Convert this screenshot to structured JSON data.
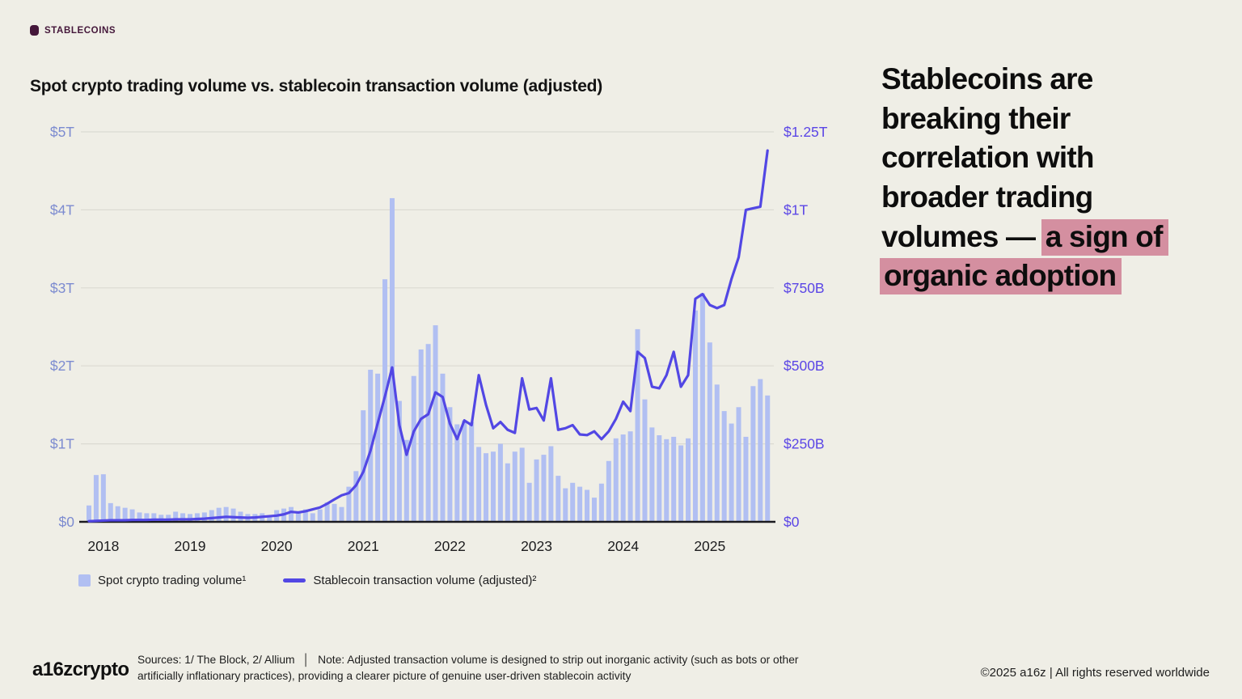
{
  "tag": {
    "label": "STABLECOINS",
    "color": "#44173a"
  },
  "chart_title": "Spot crypto trading volume vs. stablecoin transaction volume (adjusted)",
  "headline": {
    "plain": "Stablecoins are breaking their correlation with broader trading volumes — ",
    "highlighted": "a sign of organic adoption",
    "highlight_color": "#d48fa0"
  },
  "legend": [
    {
      "label": "Spot crypto trading volume¹",
      "swatch": "bar-swatch",
      "color": "#b1bff2"
    },
    {
      "label": "Stablecoin transaction volume (adjusted)²",
      "swatch": "line-swatch",
      "color": "#5247e4"
    }
  ],
  "footer": {
    "logo": "a16zcrypto",
    "sources": "Sources: 1/ The Block, 2/ Allium",
    "separator": "│",
    "note": "Note: Adjusted transaction volume is designed to strip out inorganic activity (such as bots or other artificially inflationary practices), providing a clearer picture of genuine user-driven stablecoin activity",
    "copyright": "©2025 a16z | All rights reserved worldwide"
  },
  "chart_data": {
    "type": "combo-bar-line",
    "title": "Spot crypto trading volume vs. stablecoin transaction volume (adjusted)",
    "x_axis": {
      "start_month": "2017-11",
      "frequency": "monthly",
      "end_month": "2025-09",
      "year_labels": [
        "2018",
        "2019",
        "2020",
        "2021",
        "2022",
        "2023",
        "2024",
        "2025"
      ]
    },
    "left_axis": {
      "title": "Spot crypto trading volume",
      "unit": "USD trillions",
      "range": [
        0,
        5
      ],
      "labels": [
        "$5T",
        "$4T",
        "$3T",
        "$2T",
        "$1T",
        "$0"
      ]
    },
    "right_axis": {
      "title": "Stablecoin transaction volume (adjusted)",
      "unit": "USD billions",
      "range": [
        0,
        1250
      ],
      "labels": [
        "$1.25T",
        "$1T",
        "$750B",
        "$500B",
        "$250B",
        "$0"
      ]
    },
    "grid": "horizontal",
    "legend_position": "bottom-left",
    "series": [
      {
        "name": "Spot crypto trading volume",
        "type": "bar",
        "axis": "left",
        "unit": "$T",
        "color": "#b1bff2",
        "values": [
          0.21,
          0.6,
          0.61,
          0.24,
          0.2,
          0.18,
          0.16,
          0.12,
          0.11,
          0.11,
          0.09,
          0.09,
          0.13,
          0.11,
          0.1,
          0.11,
          0.12,
          0.15,
          0.18,
          0.19,
          0.17,
          0.13,
          0.1,
          0.1,
          0.11,
          0.08,
          0.15,
          0.17,
          0.19,
          0.13,
          0.16,
          0.11,
          0.16,
          0.25,
          0.23,
          0.19,
          0.45,
          0.65,
          1.43,
          1.95,
          1.9,
          3.11,
          4.15,
          1.55,
          1.05,
          1.87,
          2.21,
          2.28,
          2.52,
          1.9,
          1.47,
          1.25,
          1.3,
          1.28,
          0.96,
          0.88,
          0.9,
          1.0,
          0.75,
          0.9,
          0.95,
          0.5,
          0.8,
          0.86,
          0.97,
          0.59,
          0.43,
          0.5,
          0.45,
          0.41,
          0.31,
          0.49,
          0.78,
          1.07,
          1.12,
          1.16,
          2.47,
          1.57,
          1.21,
          1.11,
          1.06,
          1.09,
          0.98,
          1.07,
          2.71,
          2.93,
          2.3,
          1.76,
          1.42,
          1.26,
          1.47,
          1.09,
          1.74,
          1.83,
          1.62
        ]
      },
      {
        "name": "Stablecoin transaction volume (adjusted)",
        "type": "line",
        "axis": "right",
        "unit": "$B",
        "color": "#5247e4",
        "values": [
          2,
          3,
          4,
          5,
          5,
          5,
          6,
          6,
          6,
          7,
          7,
          7,
          8,
          8,
          8,
          9,
          10,
          12,
          14,
          16,
          15,
          14,
          13,
          14,
          16,
          18,
          20,
          24,
          32,
          30,
          34,
          40,
          46,
          58,
          72,
          85,
          92,
          117,
          160,
          228,
          316,
          402,
          495,
          310,
          215,
          290,
          330,
          345,
          415,
          400,
          315,
          265,
          325,
          310,
          470,
          375,
          300,
          320,
          295,
          285,
          460,
          360,
          365,
          325,
          460,
          295,
          300,
          310,
          280,
          278,
          290,
          265,
          290,
          330,
          385,
          355,
          545,
          525,
          433,
          428,
          470,
          545,
          433,
          470,
          715,
          730,
          695,
          685,
          695,
          778,
          848,
          1000,
          1005,
          1010,
          1190
        ]
      }
    ],
    "colors": {
      "background": "#efeee6",
      "gridline": "#dbdad2",
      "baseline": "#1a1a1f",
      "left_axis_labels": "#7c8bd0",
      "right_axis_labels": "#5b46e6",
      "x_axis_labels": "#1c1c1e"
    }
  }
}
